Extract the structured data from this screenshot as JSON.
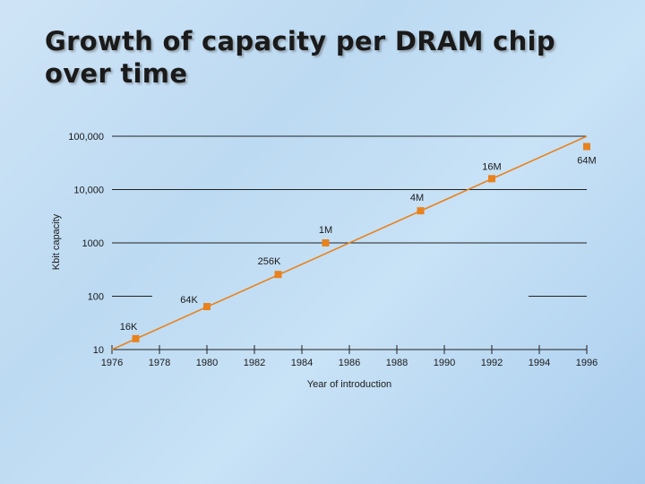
{
  "slide": {
    "title_line1": "Growth of capacity per DRAM chip",
    "title_line2": "over time"
  },
  "colors": {
    "series": "#e8821e",
    "grid": "#222222"
  },
  "chart_data": {
    "type": "line",
    "scale": "log",
    "xlabel": "Year of introduction",
    "ylabel": "Kbit capacity",
    "xlim": [
      1976,
      1996
    ],
    "ylim": [
      10,
      100000
    ],
    "x_ticks": [
      "1976",
      "1978",
      "1980",
      "1982",
      "1984",
      "1986",
      "1988",
      "1990",
      "1992",
      "1994",
      "1996"
    ],
    "y_ticks": [
      {
        "value": 10,
        "label": "10"
      },
      {
        "value": 100,
        "label": "100"
      },
      {
        "value": 1000,
        "label": "1000"
      },
      {
        "value": 10000,
        "label": "10,000"
      },
      {
        "value": 100000,
        "label": "100,000"
      }
    ],
    "points": [
      {
        "x": 1977,
        "y": 16,
        "label": "16K"
      },
      {
        "x": 1980,
        "y": 64,
        "label": "64K"
      },
      {
        "x": 1983,
        "y": 256,
        "label": "256K"
      },
      {
        "x": 1985,
        "y": 1000,
        "label": "1M"
      },
      {
        "x": 1989,
        "y": 4000,
        "label": "4M"
      },
      {
        "x": 1992,
        "y": 16000,
        "label": "16M"
      },
      {
        "x": 1996,
        "y": 64000,
        "label": "64M"
      }
    ],
    "trend_line": {
      "from": {
        "x": 1976,
        "y": 10
      },
      "to": {
        "x": 1996,
        "y": 100000
      }
    }
  }
}
